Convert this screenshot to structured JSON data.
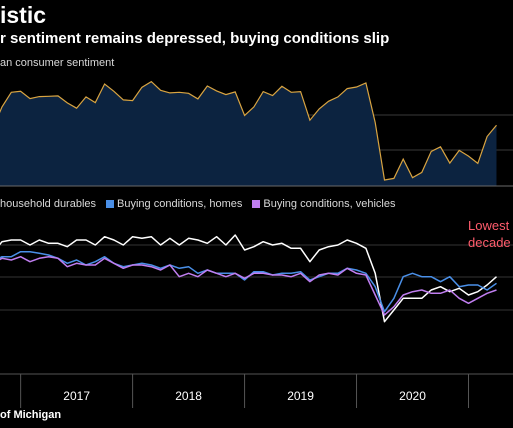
{
  "title": "istic",
  "subtitle": "r sentiment remains depressed, buying conditions slip",
  "source": "of Michigan",
  "colors": {
    "background": "#000000",
    "sentiment_fill": "#0c2340",
    "sentiment_line": "#d9a441",
    "annotation": "#ff5c6c"
  },
  "chart_data": [
    {
      "type": "area",
      "label": "an consumer sentiment",
      "x": [
        "2016-08",
        "2016-09",
        "2016-10",
        "2016-11",
        "2016-12",
        "2017-01",
        "2017-02",
        "2017-03",
        "2017-04",
        "2017-05",
        "2017-06",
        "2017-07",
        "2017-08",
        "2017-09",
        "2017-10",
        "2017-11",
        "2017-12",
        "2018-01",
        "2018-02",
        "2018-03",
        "2018-04",
        "2018-05",
        "2018-06",
        "2018-07",
        "2018-08",
        "2018-09",
        "2018-10",
        "2018-11",
        "2018-12",
        "2019-01",
        "2019-02",
        "2019-03",
        "2019-04",
        "2019-05",
        "2019-06",
        "2019-07",
        "2019-08",
        "2019-09",
        "2019-10",
        "2019-11",
        "2019-12",
        "2020-01",
        "2020-02",
        "2020-03",
        "2020-04",
        "2020-05",
        "2020-06",
        "2020-07",
        "2020-08",
        "2020-09",
        "2020-10",
        "2020-11",
        "2020-12",
        "2021-01",
        "2021-02",
        "2021-03",
        "2021-04"
      ],
      "values": [
        90.5,
        87.2,
        87.2,
        93.8,
        98.2,
        98.5,
        96.3,
        96.9,
        97.0,
        97.1,
        95.0,
        93.4,
        96.8,
        95.1,
        100.7,
        98.5,
        95.9,
        95.7,
        99.7,
        101.4,
        98.8,
        98.0,
        98.2,
        97.9,
        96.2,
        100.1,
        98.6,
        97.5,
        98.3,
        91.2,
        93.8,
        98.4,
        97.2,
        100.0,
        98.2,
        98.4,
        89.8,
        93.2,
        95.5,
        96.8,
        99.3,
        99.8,
        101.0,
        89.1,
        71.8,
        72.3,
        78.1,
        72.5,
        74.1,
        80.4,
        81.8,
        76.9,
        80.7,
        79.0,
        76.8,
        84.9,
        88.3
      ]
    },
    {
      "type": "line",
      "series": [
        {
          "name": "household durables",
          "color": "#ffffff",
          "values": [
            156,
            151,
            152,
            159,
            160,
            160,
            157,
            160,
            158,
            158,
            156,
            160,
            160,
            157,
            162,
            160,
            157,
            162,
            161,
            162,
            157,
            161,
            157,
            161,
            160,
            158,
            162,
            157,
            163,
            154,
            156,
            159,
            157,
            158,
            155,
            155,
            147,
            154,
            156,
            157,
            160,
            158,
            155,
            140,
            111,
            118,
            125,
            125,
            125,
            130,
            132,
            129,
            131,
            127,
            129,
            133,
            138
          ]
        },
        {
          "name": "Buying conditions, homes",
          "color": "#4a8fe7",
          "values": [
            150,
            145,
            147,
            150,
            150,
            153,
            153,
            152,
            151,
            149,
            146,
            148,
            145,
            147,
            150,
            146,
            144,
            145,
            146,
            145,
            143,
            145,
            143,
            144,
            140,
            142,
            140,
            140,
            140,
            136,
            141,
            141,
            139,
            140,
            140,
            141,
            136,
            138,
            140,
            140,
            143,
            142,
            140,
            132,
            117,
            125,
            138,
            140,
            138,
            138,
            135,
            138,
            132,
            133,
            133,
            130,
            134
          ]
        },
        {
          "name": "Buying conditions, vehicles",
          "color": "#c07ef0",
          "values": [
            149,
            146,
            146,
            149,
            148,
            150,
            147,
            149,
            150,
            149,
            144,
            146,
            145,
            145,
            149,
            146,
            143,
            145,
            145,
            144,
            142,
            145,
            138,
            140,
            138,
            142,
            140,
            138,
            140,
            137,
            140,
            140,
            139,
            139,
            138,
            140,
            135,
            139,
            140,
            139,
            143,
            140,
            139,
            127,
            115,
            120,
            127,
            129,
            130,
            128,
            128,
            130,
            125,
            122,
            125,
            128,
            130
          ]
        }
      ],
      "annotation_lines": [
        "Lowest",
        "decade"
      ]
    }
  ],
  "x_ticks": [
    "2017",
    "2018",
    "2019",
    "2020"
  ]
}
